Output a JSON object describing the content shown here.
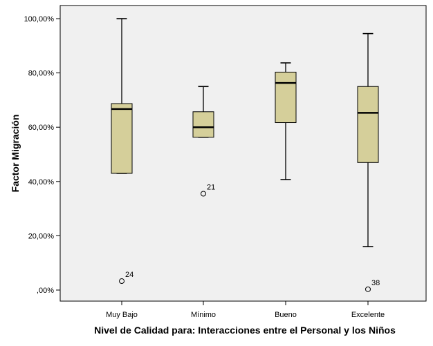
{
  "chart_data": {
    "type": "boxplot",
    "title": "",
    "xlabel": "Nivel de Calidad para: Interacciones entre el Personal y los Niños",
    "ylabel": "Factor Migración",
    "ylim": [
      0,
      100
    ],
    "yticks": [
      {
        "value": 0,
        "label": ",00%"
      },
      {
        "value": 20,
        "label": "20,00%"
      },
      {
        "value": 40,
        "label": "40,00%"
      },
      {
        "value": 60,
        "label": "60,00%"
      },
      {
        "value": 80,
        "label": "80,00%"
      },
      {
        "value": 100,
        "label": "100,00%"
      }
    ],
    "categories": [
      "Muy Bajo",
      "Mínimo",
      "Bueno",
      "Excelente"
    ],
    "boxes": [
      {
        "category": "Muy Bajo",
        "min": 43,
        "q1": 43,
        "median": 66.7,
        "q3": 68.7,
        "max": 100,
        "outliers": [
          {
            "value": 3.3,
            "label": "24"
          }
        ]
      },
      {
        "category": "Mínimo",
        "min": 56.3,
        "q1": 56.3,
        "median": 60,
        "q3": 65.7,
        "max": 75,
        "outliers": [
          {
            "value": 35.5,
            "label": "21"
          }
        ]
      },
      {
        "category": "Bueno",
        "min": 40.7,
        "q1": 61.7,
        "median": 76.3,
        "q3": 80.3,
        "max": 83.7,
        "outliers": []
      },
      {
        "category": "Excelente",
        "min": 16,
        "q1": 47,
        "median": 65.3,
        "q3": 75,
        "max": 94.5,
        "outliers": [
          {
            "value": 0.3,
            "label": "38"
          }
        ]
      }
    ],
    "colors": {
      "box_fill": "#d5cf9a",
      "plot_background": "#f0f0f0",
      "stroke": "#000000"
    },
    "grid": false,
    "legend": "none"
  }
}
